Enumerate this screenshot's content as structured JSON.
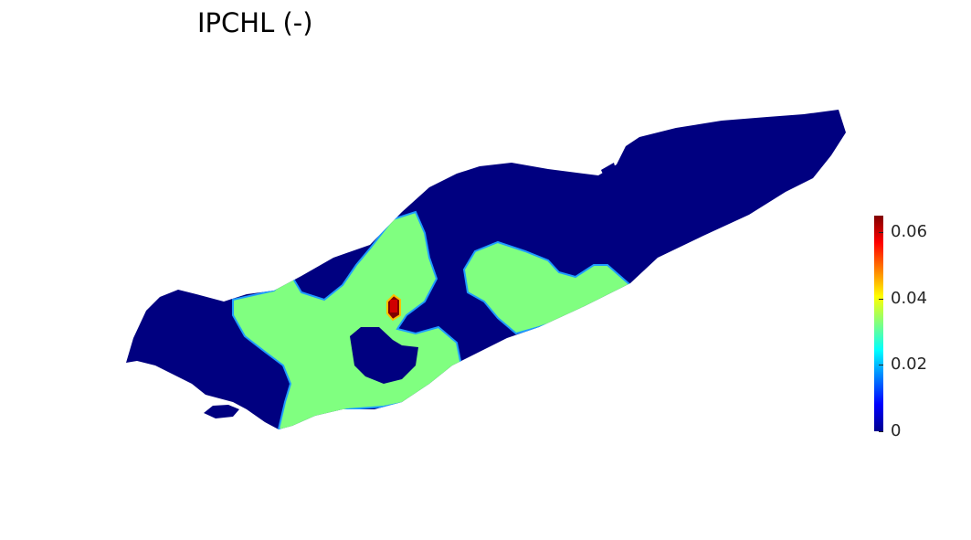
{
  "title": "IPCHL (-)",
  "colorbar": {
    "colormap": "jet",
    "min": 0,
    "max": 0.065,
    "ticks": [
      {
        "value": 0,
        "label": "0"
      },
      {
        "value": 0.02,
        "label": "0.02"
      },
      {
        "value": 0.04,
        "label": "0.04"
      },
      {
        "value": 0.06,
        "label": "0.06"
      }
    ]
  },
  "colors": {
    "background_level": "#000080",
    "mid_level": "#80ff80",
    "peak_level": "#800000"
  },
  "field_levels": {
    "background": 0,
    "mid": 0.04,
    "peak": 0.065
  }
}
